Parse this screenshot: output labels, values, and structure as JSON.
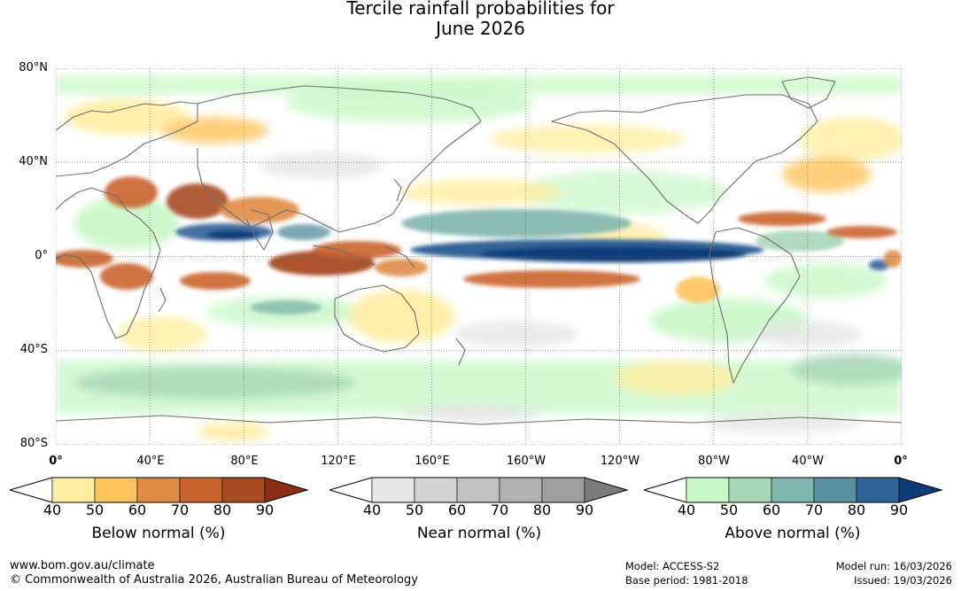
{
  "title": {
    "line1": "Tercile rainfall probabilities for",
    "line2": "June 2026"
  },
  "map": {
    "lat_labels": [
      "80°N",
      "40°N",
      "0°",
      "40°S",
      "80°S"
    ],
    "lon_labels": [
      "0°",
      "40°E",
      "80°E",
      "120°E",
      "160°E",
      "160°W",
      "120°W",
      "80°W",
      "40°W",
      "0°"
    ]
  },
  "legends": [
    {
      "title": "Below normal (%)",
      "ticks": [
        "40",
        "50",
        "60",
        "70",
        "80",
        "90"
      ],
      "colors": [
        "#ffffff",
        "#ffeda0",
        "#fec45c",
        "#e08c46",
        "#c9642f",
        "#a84a22",
        "#8c2e14"
      ]
    },
    {
      "title": "Near normal (%)",
      "ticks": [
        "40",
        "50",
        "60",
        "70",
        "80",
        "90"
      ],
      "colors": [
        "#ffffff",
        "#e6e6e6",
        "#d4d4d4",
        "#c2c2c2",
        "#b1b1b1",
        "#9f9f9f",
        "#7c7c7c"
      ]
    },
    {
      "title": "Above normal (%)",
      "ticks": [
        "40",
        "50",
        "60",
        "70",
        "80",
        "90"
      ],
      "colors": [
        "#ffffff",
        "#c8f7c8",
        "#a6d6b6",
        "#7fb6ad",
        "#5a91a0",
        "#306398",
        "#0c3d7a"
      ]
    }
  ],
  "footer": {
    "website": "www.bom.gov.au/climate",
    "copyright": "© Commonwealth of Australia 2026, Australian Bureau of Meteorology",
    "model": "Model: ACCESS-S2",
    "base_period": "Base period: 1981-2018",
    "model_run": "Model run: 16/03/2026",
    "issued": "Issued: 19/03/2026"
  }
}
